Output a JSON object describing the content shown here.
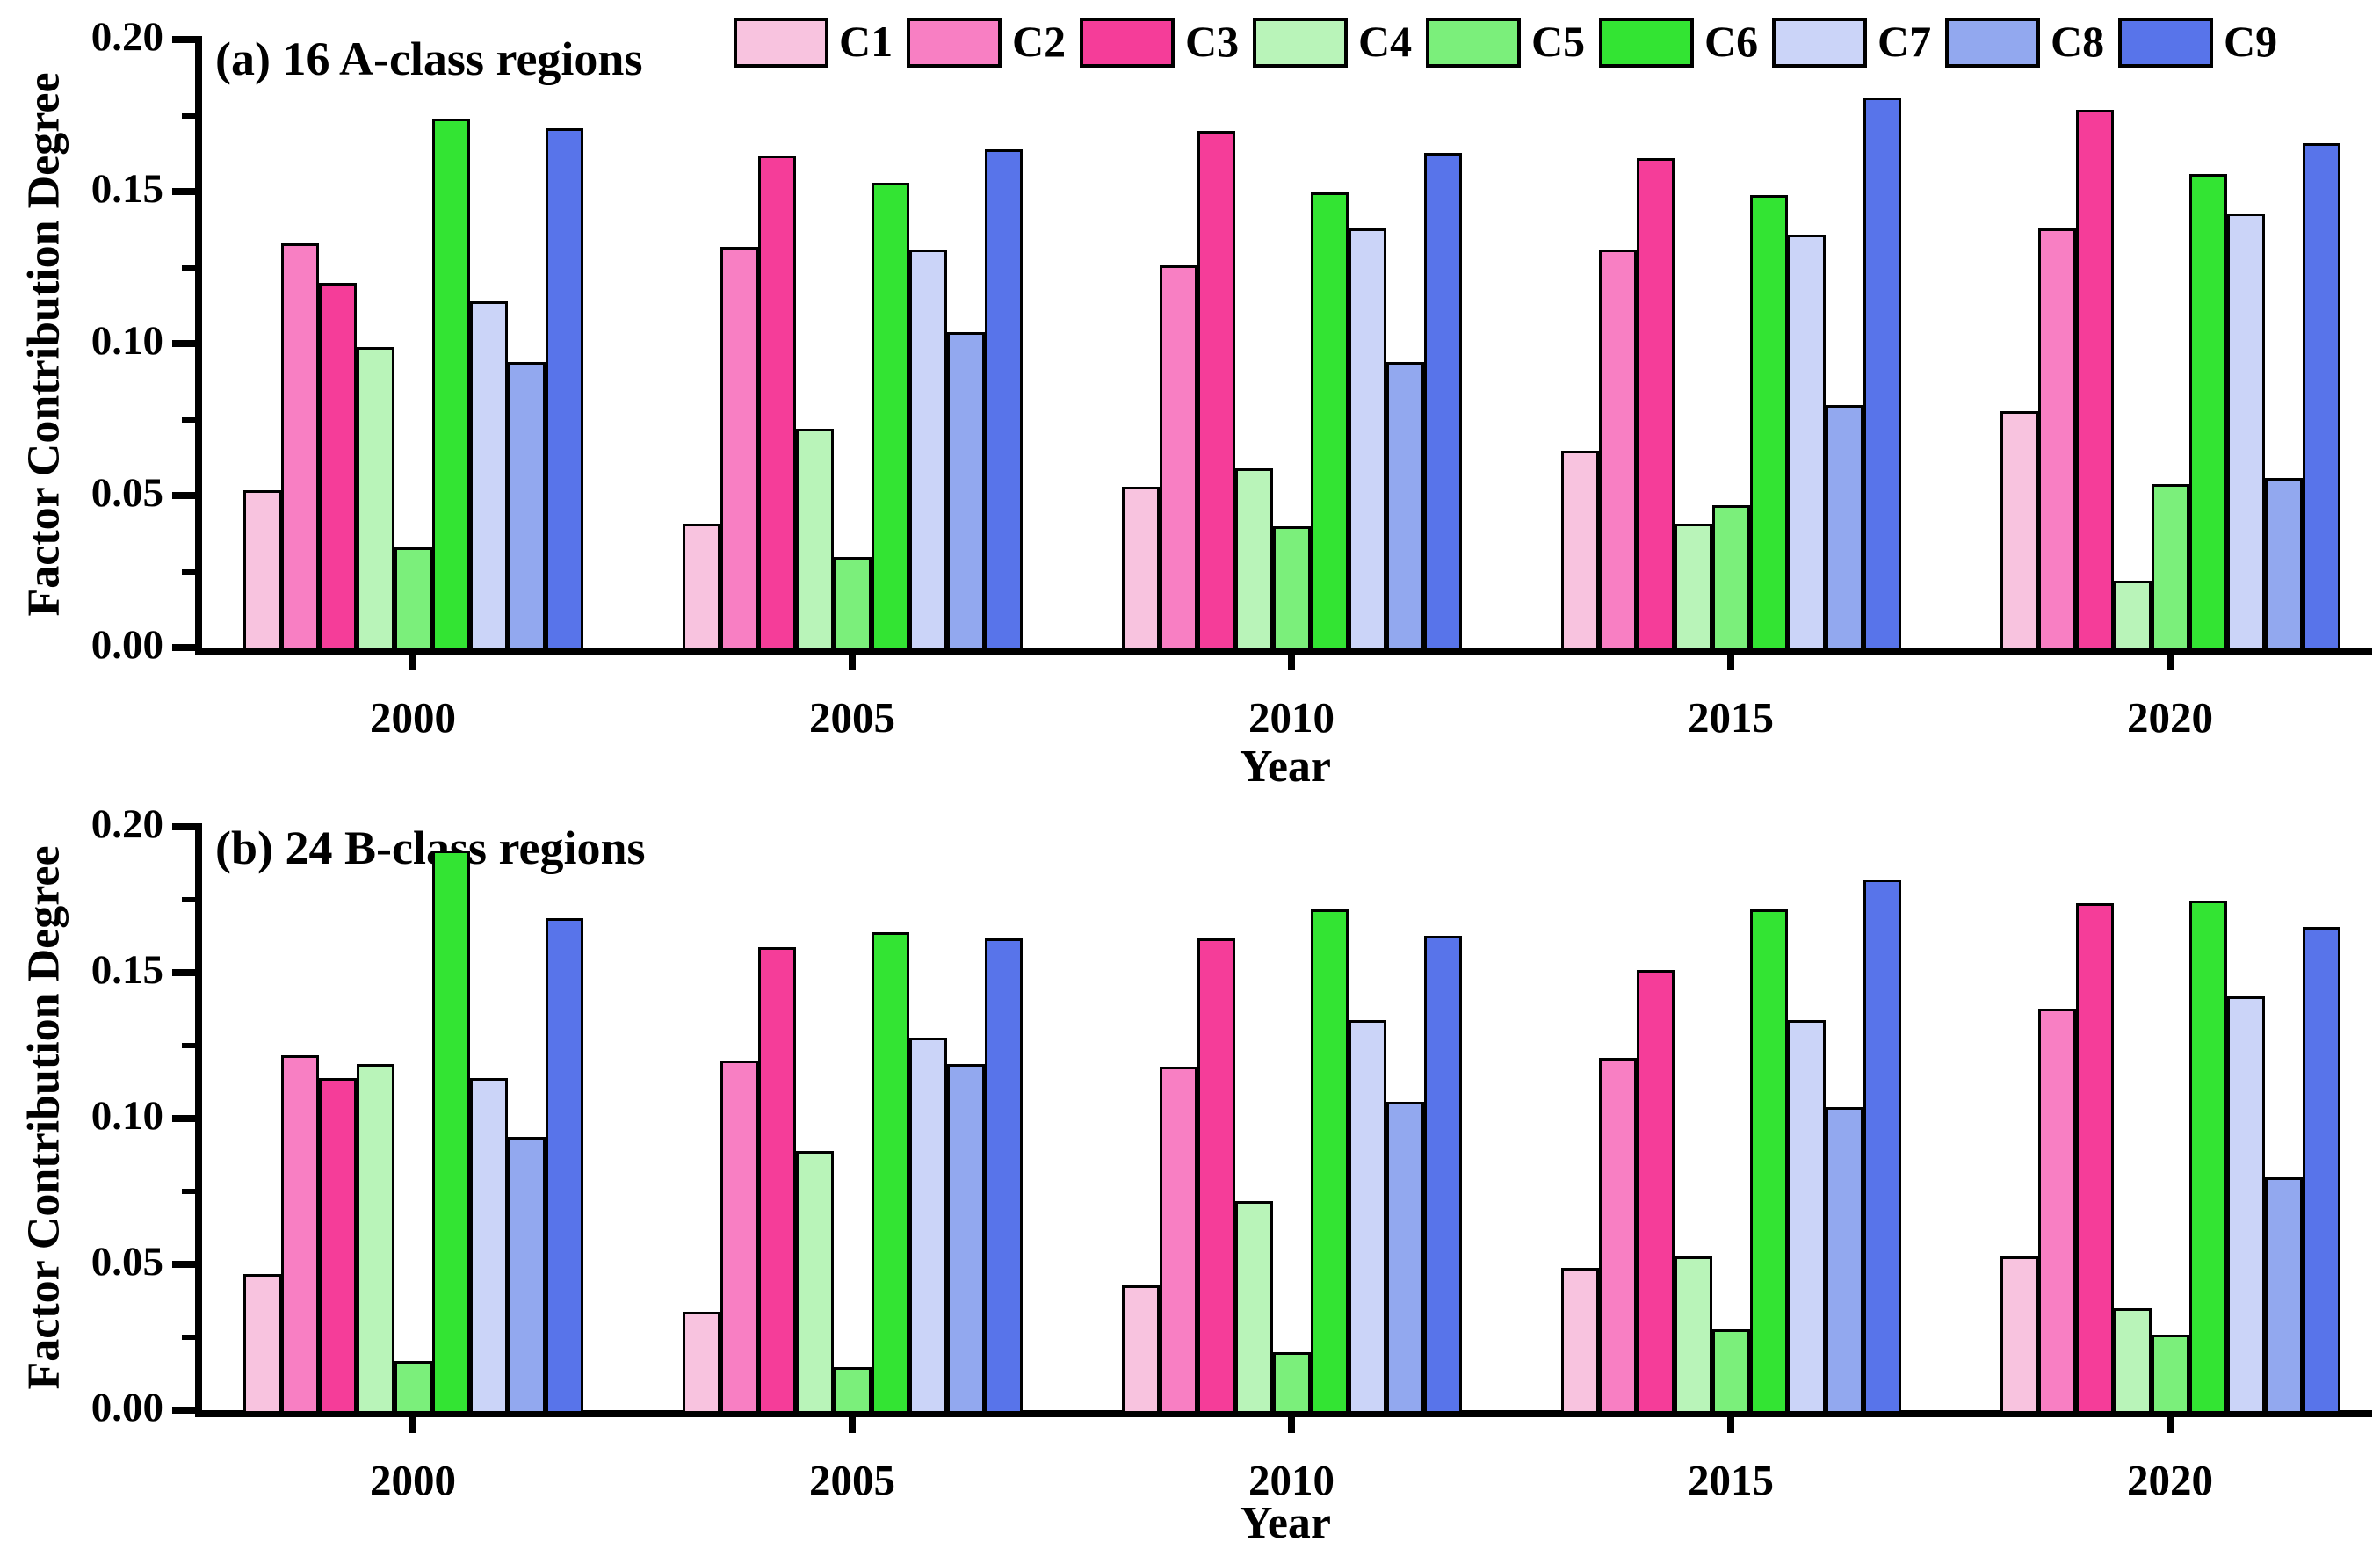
{
  "figure": {
    "background": "#ffffff",
    "axis_color": "#000000"
  },
  "legend": {
    "position": "top",
    "items": [
      {
        "label": "C1",
        "color": "#F8C3DF"
      },
      {
        "label": "C2",
        "color": "#F87FC3"
      },
      {
        "label": "C3",
        "color": "#F53D99"
      },
      {
        "label": "C4",
        "color": "#B9F4B9"
      },
      {
        "label": "C5",
        "color": "#7BEF7B"
      },
      {
        "label": "C6",
        "color": "#33E433"
      },
      {
        "label": "C7",
        "color": "#CBD4F8"
      },
      {
        "label": "C8",
        "color": "#92A8EF"
      },
      {
        "label": "C9",
        "color": "#5874EA"
      }
    ]
  },
  "chart_data": [
    {
      "type": "bar",
      "title": "(a) 16 A-class regions",
      "xlabel": "Year",
      "ylabel": "Factor Contribution Degree",
      "ylim": [
        0.0,
        0.2
      ],
      "ytick_labels": [
        "0.00",
        "0.05",
        "0.10",
        "0.15",
        "0.20"
      ],
      "grid": false,
      "categories": [
        "2000",
        "2005",
        "2010",
        "2015",
        "2020"
      ],
      "series": [
        {
          "name": "C1",
          "values": [
            0.053,
            0.042,
            0.054,
            0.066,
            0.079
          ]
        },
        {
          "name": "C2",
          "values": [
            0.134,
            0.133,
            0.127,
            0.132,
            0.139
          ]
        },
        {
          "name": "C3",
          "values": [
            0.121,
            0.163,
            0.171,
            0.162,
            0.178
          ]
        },
        {
          "name": "C4",
          "values": [
            0.1,
            0.073,
            0.06,
            0.042,
            0.023
          ]
        },
        {
          "name": "C5",
          "values": [
            0.034,
            0.031,
            0.041,
            0.048,
            0.055
          ]
        },
        {
          "name": "C6",
          "values": [
            0.175,
            0.154,
            0.151,
            0.15,
            0.157
          ]
        },
        {
          "name": "C7",
          "values": [
            0.115,
            0.132,
            0.139,
            0.137,
            0.144
          ]
        },
        {
          "name": "C8",
          "values": [
            0.095,
            0.105,
            0.095,
            0.081,
            0.057
          ]
        },
        {
          "name": "C9",
          "values": [
            0.172,
            0.165,
            0.164,
            0.182,
            0.167
          ]
        }
      ]
    },
    {
      "type": "bar",
      "title": "(b) 24 B-class regions",
      "xlabel": "Year",
      "ylabel": "Factor Contribution Degree",
      "ylim": [
        0.0,
        0.2
      ],
      "ytick_labels": [
        "0.00",
        "0.05",
        "0.10",
        "0.15",
        "0.20"
      ],
      "grid": false,
      "categories": [
        "2000",
        "2005",
        "2010",
        "2015",
        "2020"
      ],
      "series": [
        {
          "name": "C1",
          "values": [
            0.048,
            0.035,
            0.044,
            0.05,
            0.054
          ]
        },
        {
          "name": "C2",
          "values": [
            0.123,
            0.121,
            0.119,
            0.122,
            0.139
          ]
        },
        {
          "name": "C3",
          "values": [
            0.115,
            0.16,
            0.163,
            0.152,
            0.175
          ]
        },
        {
          "name": "C4",
          "values": [
            0.12,
            0.09,
            0.073,
            0.054,
            0.036
          ]
        },
        {
          "name": "C5",
          "values": [
            0.018,
            0.016,
            0.021,
            0.029,
            0.027
          ]
        },
        {
          "name": "C6",
          "values": [
            0.193,
            0.165,
            0.173,
            0.173,
            0.176
          ]
        },
        {
          "name": "C7",
          "values": [
            0.115,
            0.129,
            0.135,
            0.135,
            0.143
          ]
        },
        {
          "name": "C8",
          "values": [
            0.095,
            0.12,
            0.107,
            0.105,
            0.081
          ]
        },
        {
          "name": "C9",
          "values": [
            0.17,
            0.163,
            0.164,
            0.183,
            0.167
          ]
        }
      ]
    }
  ]
}
